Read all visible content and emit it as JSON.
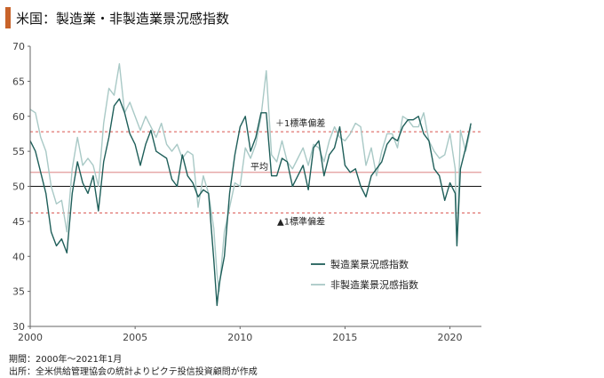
{
  "title": "米国：製造業・非製造業景況感指数",
  "footnotes": {
    "period": "期間：2000年～2021年1月",
    "source": "出所：全米供給管理協会の統計よりピクテ投信投資顧問が作成"
  },
  "colors": {
    "accent": "#c8632a",
    "manufacturing": "#1f5f5a",
    "non_manufacturing": "#a9c9c6",
    "average_line": "#e39a9a",
    "std_lines": "#d9534f",
    "baseline": "#111111",
    "axis_text": "#444444"
  },
  "chart_data": {
    "type": "line",
    "title": "米国：製造業・非製造業景況感指数",
    "xlim": [
      2000,
      2021.5
    ],
    "ylim": [
      30,
      70
    ],
    "x_ticks": [
      2000,
      2005,
      2010,
      2015,
      2020
    ],
    "y_ticks": [
      30,
      35,
      40,
      45,
      50,
      55,
      60,
      65,
      70
    ],
    "x_tick_labels": [
      "2000",
      "2005",
      "2010",
      "2015",
      "2020"
    ],
    "y_tick_labels": [
      "30",
      "35",
      "40",
      "45",
      "50",
      "55",
      "60",
      "65",
      "70"
    ],
    "grid": false,
    "legend_position": "lower-right",
    "reference_lines": [
      {
        "label": "＋1標準偏差",
        "value": 57.8,
        "style": "dashed"
      },
      {
        "label": "平均",
        "value": 52.0,
        "style": "solid"
      },
      {
        "label": "",
        "value": 50.0,
        "style": "solid"
      },
      {
        "label": "▲1標準偏差",
        "value": 46.2,
        "style": "dashed"
      }
    ],
    "series": [
      {
        "name": "製造業景況感指数",
        "x": [
          2000.0,
          2000.25,
          2000.5,
          2000.75,
          2001.0,
          2001.25,
          2001.5,
          2001.75,
          2002.0,
          2002.25,
          2002.5,
          2002.75,
          2003.0,
          2003.25,
          2003.5,
          2003.75,
          2004.0,
          2004.25,
          2004.5,
          2004.75,
          2005.0,
          2005.25,
          2005.5,
          2005.75,
          2006.0,
          2006.25,
          2006.5,
          2006.75,
          2007.0,
          2007.25,
          2007.5,
          2007.75,
          2008.0,
          2008.25,
          2008.5,
          2008.75,
          2008.9,
          2009.0,
          2009.25,
          2009.5,
          2009.75,
          2010.0,
          2010.25,
          2010.5,
          2010.75,
          2011.0,
          2011.25,
          2011.5,
          2011.75,
          2012.0,
          2012.25,
          2012.5,
          2012.75,
          2013.0,
          2013.25,
          2013.5,
          2013.75,
          2014.0,
          2014.25,
          2014.5,
          2014.75,
          2015.0,
          2015.25,
          2015.5,
          2015.75,
          2016.0,
          2016.25,
          2016.5,
          2016.75,
          2017.0,
          2017.25,
          2017.5,
          2017.75,
          2018.0,
          2018.25,
          2018.5,
          2018.75,
          2019.0,
          2019.25,
          2019.5,
          2019.75,
          2020.0,
          2020.25,
          2020.33,
          2020.5,
          2020.75,
          2021.0
        ],
        "values": [
          56.5,
          55.0,
          52.0,
          49.0,
          43.5,
          41.5,
          42.5,
          40.5,
          49.0,
          53.5,
          50.5,
          49.0,
          51.5,
          46.5,
          53.5,
          57.0,
          61.5,
          62.5,
          60.5,
          57.5,
          56.0,
          53.0,
          56.0,
          58.0,
          55.0,
          54.5,
          54.0,
          51.0,
          50.0,
          54.5,
          51.5,
          50.5,
          48.5,
          49.5,
          49.0,
          39.5,
          33.0,
          36.0,
          40.0,
          49.0,
          54.5,
          58.5,
          60.0,
          55.0,
          57.0,
          60.5,
          60.5,
          51.5,
          51.5,
          54.0,
          53.5,
          50.0,
          51.5,
          53.0,
          49.5,
          55.5,
          56.5,
          51.5,
          54.5,
          55.5,
          58.5,
          53.0,
          52.0,
          52.5,
          50.0,
          48.5,
          51.5,
          52.5,
          53.5,
          56.0,
          57.0,
          56.5,
          58.5,
          59.5,
          59.5,
          60.0,
          57.5,
          56.5,
          52.5,
          51.5,
          48.0,
          50.5,
          49.0,
          41.5,
          52.5,
          55.5,
          59.0
        ]
      },
      {
        "name": "非製造業景況感指数",
        "x": [
          2000.0,
          2000.25,
          2000.5,
          2000.75,
          2001.0,
          2001.25,
          2001.5,
          2001.75,
          2002.0,
          2002.25,
          2002.5,
          2002.75,
          2003.0,
          2003.25,
          2003.5,
          2003.75,
          2004.0,
          2004.25,
          2004.5,
          2004.75,
          2005.0,
          2005.25,
          2005.5,
          2005.75,
          2006.0,
          2006.25,
          2006.5,
          2006.75,
          2007.0,
          2007.25,
          2007.5,
          2007.75,
          2008.0,
          2008.25,
          2008.5,
          2008.75,
          2008.9,
          2009.0,
          2009.25,
          2009.5,
          2009.75,
          2010.0,
          2010.25,
          2010.5,
          2010.75,
          2011.0,
          2011.25,
          2011.5,
          2011.75,
          2012.0,
          2012.25,
          2012.5,
          2012.75,
          2013.0,
          2013.25,
          2013.5,
          2013.75,
          2014.0,
          2014.25,
          2014.5,
          2014.75,
          2015.0,
          2015.25,
          2015.5,
          2015.75,
          2016.0,
          2016.25,
          2016.5,
          2016.75,
          2017.0,
          2017.25,
          2017.5,
          2017.75,
          2018.0,
          2018.25,
          2018.5,
          2018.75,
          2019.0,
          2019.25,
          2019.5,
          2019.75,
          2020.0,
          2020.25,
          2020.33,
          2020.5,
          2020.75,
          2021.0
        ],
        "values": [
          61.0,
          60.5,
          57.0,
          55.0,
          50.0,
          47.5,
          48.0,
          43.5,
          52.5,
          57.0,
          53.0,
          54.0,
          53.0,
          50.0,
          59.0,
          64.0,
          63.0,
          67.5,
          60.5,
          62.0,
          60.0,
          58.0,
          60.0,
          58.5,
          57.0,
          59.0,
          56.0,
          55.0,
          56.0,
          54.0,
          55.0,
          54.5,
          47.0,
          51.5,
          49.0,
          44.0,
          37.5,
          35.0,
          43.5,
          47.0,
          50.5,
          50.0,
          55.5,
          54.0,
          56.0,
          60.0,
          66.5,
          54.5,
          53.5,
          56.5,
          53.5,
          52.5,
          54.0,
          55.5,
          53.0,
          56.0,
          55.5,
          53.5,
          56.5,
          58.5,
          57.0,
          56.5,
          57.5,
          59.0,
          58.5,
          53.0,
          55.5,
          51.5,
          55.0,
          57.5,
          57.5,
          55.5,
          60.0,
          59.5,
          58.5,
          58.5,
          60.5,
          56.5,
          55.0,
          54.0,
          54.5,
          57.5,
          52.5,
          41.8,
          58.0,
          55.0,
          58.5
        ]
      }
    ]
  }
}
